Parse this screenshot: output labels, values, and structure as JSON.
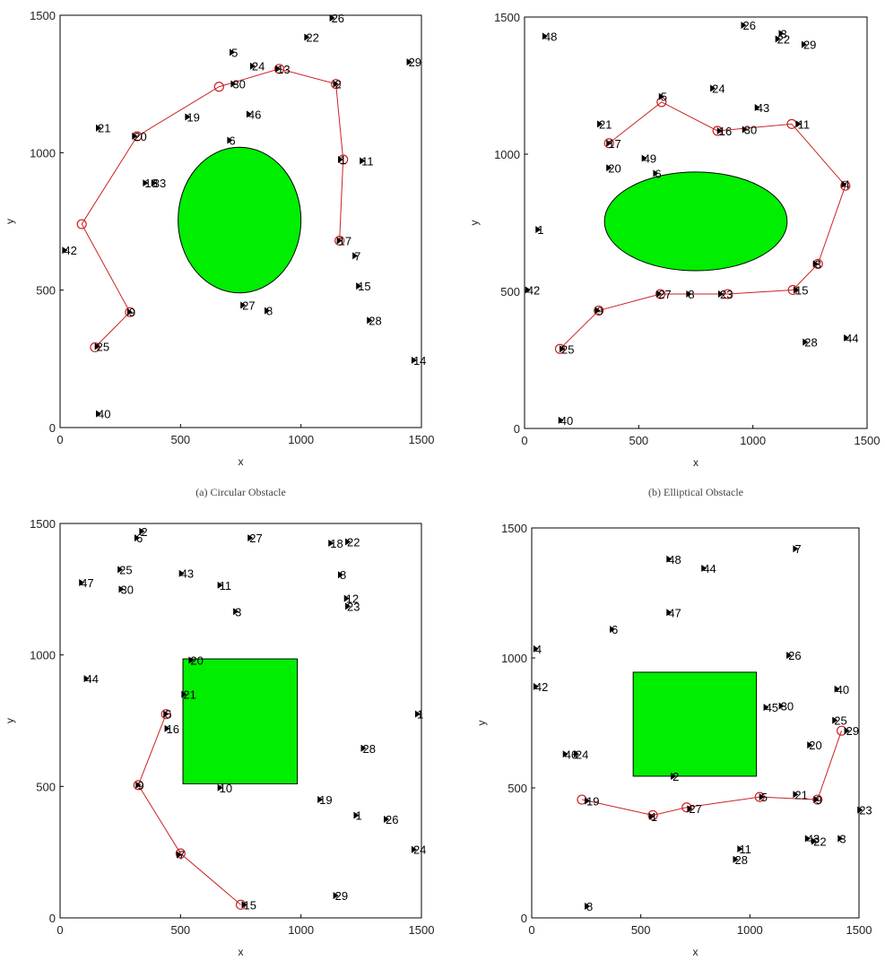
{
  "colors": {
    "obstacle": "#00ee00",
    "path": "#cc2222",
    "frame": "#000000"
  },
  "chart_data": [
    {
      "type": "scatter",
      "caption": "(a) Circular Obstacle",
      "xlabel": "x",
      "ylabel": "y",
      "xlim": [
        0,
        1500
      ],
      "ylim": [
        0,
        1500
      ],
      "xticks": [
        0,
        500,
        1000,
        1500
      ],
      "yticks": [
        0,
        500,
        1000,
        1500
      ],
      "obstacle": {
        "shape": "ellipse",
        "cx": 745,
        "cy": 755,
        "rx": 255,
        "ry": 265
      },
      "points": [
        {
          "label": "26",
          "x": 1130,
          "y": 1490
        },
        {
          "label": "22",
          "x": 1025,
          "y": 1420
        },
        {
          "label": "29",
          "x": 1450,
          "y": 1330
        },
        {
          "label": "5",
          "x": 715,
          "y": 1365
        },
        {
          "label": "24",
          "x": 800,
          "y": 1315
        },
        {
          "label": "13",
          "x": 905,
          "y": 1305
        },
        {
          "label": "2",
          "x": 1145,
          "y": 1250
        },
        {
          "label": "30",
          "x": 720,
          "y": 1250
        },
        {
          "label": "46",
          "x": 785,
          "y": 1140
        },
        {
          "label": "19",
          "x": 530,
          "y": 1130
        },
        {
          "label": "21",
          "x": 160,
          "y": 1090
        },
        {
          "label": "20",
          "x": 310,
          "y": 1060
        },
        {
          "label": "6",
          "x": 705,
          "y": 1045
        },
        {
          "label": "1",
          "x": 1165,
          "y": 975
        },
        {
          "label": "11",
          "x": 1255,
          "y": 970
        },
        {
          "label": "18",
          "x": 355,
          "y": 890
        },
        {
          "label": "33",
          "x": 390,
          "y": 890
        },
        {
          "label": "17",
          "x": 1160,
          "y": 680
        },
        {
          "label": "42",
          "x": 20,
          "y": 645
        },
        {
          "label": "7",
          "x": 1225,
          "y": 625
        },
        {
          "label": "15",
          "x": 1240,
          "y": 515
        },
        {
          "label": "27",
          "x": 760,
          "y": 445
        },
        {
          "label": "8",
          "x": 860,
          "y": 425
        },
        {
          "label": "9",
          "x": 290,
          "y": 420
        },
        {
          "label": "28",
          "x": 1285,
          "y": 390
        },
        {
          "label": "25",
          "x": 155,
          "y": 295
        },
        {
          "label": "14",
          "x": 1470,
          "y": 245
        },
        {
          "label": "40",
          "x": 160,
          "y": 50
        }
      ],
      "path": [
        [
          145,
          292
        ],
        [
          290,
          420
        ],
        [
          90,
          740
        ],
        [
          320,
          1060
        ],
        [
          660,
          1240
        ],
        [
          910,
          1305
        ],
        [
          1145,
          1250
        ],
        [
          1175,
          975
        ],
        [
          1160,
          680
        ]
      ],
      "path_nodes": [
        [
          145,
          292
        ],
        [
          290,
          420
        ],
        [
          90,
          740
        ],
        [
          320,
          1060
        ],
        [
          660,
          1240
        ],
        [
          910,
          1305
        ],
        [
          1145,
          1250
        ],
        [
          1175,
          975
        ],
        [
          1160,
          680
        ]
      ]
    },
    {
      "type": "scatter",
      "caption": "(b) Elliptical Obstacle",
      "xlabel": "x",
      "ylabel": "y",
      "xlim": [
        0,
        1500
      ],
      "ylim": [
        0,
        1500
      ],
      "xticks": [
        0,
        500,
        1000,
        1500
      ],
      "yticks": [
        0,
        500,
        1000,
        1500
      ],
      "obstacle": {
        "shape": "ellipse",
        "cx": 750,
        "cy": 755,
        "rx": 400,
        "ry": 180
      },
      "points": [
        {
          "label": "26",
          "x": 960,
          "y": 1470
        },
        {
          "label": "3",
          "x": 1125,
          "y": 1440
        },
        {
          "label": "48",
          "x": 90,
          "y": 1430
        },
        {
          "label": "22",
          "x": 1110,
          "y": 1420
        },
        {
          "label": "29",
          "x": 1225,
          "y": 1400
        },
        {
          "label": "24",
          "x": 825,
          "y": 1240
        },
        {
          "label": "5",
          "x": 600,
          "y": 1210
        },
        {
          "label": "43",
          "x": 1020,
          "y": 1170
        },
        {
          "label": "11",
          "x": 1200,
          "y": 1110
        },
        {
          "label": "21",
          "x": 330,
          "y": 1110
        },
        {
          "label": "16",
          "x": 855,
          "y": 1085
        },
        {
          "label": "30",
          "x": 965,
          "y": 1090
        },
        {
          "label": "17",
          "x": 370,
          "y": 1040
        },
        {
          "label": "49",
          "x": 525,
          "y": 985
        },
        {
          "label": "20",
          "x": 370,
          "y": 950
        },
        {
          "label": "6",
          "x": 575,
          "y": 930
        },
        {
          "label": "4",
          "x": 1400,
          "y": 890
        },
        {
          "label": "1",
          "x": 60,
          "y": 725
        },
        {
          "label": "3",
          "x": 1275,
          "y": 600
        },
        {
          "label": "42",
          "x": 15,
          "y": 505
        },
        {
          "label": "15",
          "x": 1190,
          "y": 505
        },
        {
          "label": "27",
          "x": 590,
          "y": 490
        },
        {
          "label": "8",
          "x": 720,
          "y": 490
        },
        {
          "label": "23",
          "x": 860,
          "y": 490
        },
        {
          "label": "9",
          "x": 320,
          "y": 430
        },
        {
          "label": "44",
          "x": 1410,
          "y": 330
        },
        {
          "label": "28",
          "x": 1230,
          "y": 315
        },
        {
          "label": "25",
          "x": 165,
          "y": 290
        },
        {
          "label": "40",
          "x": 160,
          "y": 30
        }
      ],
      "path": [
        [
          155,
          290
        ],
        [
          325,
          430
        ],
        [
          595,
          490
        ],
        [
          890,
          490
        ],
        [
          1175,
          505
        ],
        [
          1285,
          600
        ],
        [
          1405,
          885
        ],
        [
          1170,
          1110
        ],
        [
          845,
          1085
        ],
        [
          600,
          1190
        ],
        [
          370,
          1040
        ]
      ],
      "path_nodes": [
        [
          155,
          290
        ],
        [
          325,
          430
        ],
        [
          595,
          490
        ],
        [
          890,
          490
        ],
        [
          1175,
          505
        ],
        [
          1285,
          600
        ],
        [
          1405,
          885
        ],
        [
          1170,
          1110
        ],
        [
          845,
          1085
        ],
        [
          600,
          1190
        ],
        [
          370,
          1040
        ]
      ]
    },
    {
      "type": "scatter",
      "caption": "",
      "xlabel": "x",
      "ylabel": "y",
      "xlim": [
        0,
        1500
      ],
      "ylim": [
        0,
        1500
      ],
      "xticks": [
        0,
        500,
        1000,
        1500
      ],
      "yticks": [
        0,
        500,
        1000,
        1500
      ],
      "obstacle": {
        "shape": "rect",
        "x0": 510,
        "x1": 985,
        "y0": 510,
        "y1": 985
      },
      "points": [
        {
          "label": "2",
          "x": 340,
          "y": 1470
        },
        {
          "label": "6",
          "x": 320,
          "y": 1445
        },
        {
          "label": "27",
          "x": 790,
          "y": 1445
        },
        {
          "label": "18",
          "x": 1125,
          "y": 1425
        },
        {
          "label": "22",
          "x": 1195,
          "y": 1430
        },
        {
          "label": "25",
          "x": 250,
          "y": 1325
        },
        {
          "label": "43",
          "x": 505,
          "y": 1310
        },
        {
          "label": "8",
          "x": 1165,
          "y": 1305
        },
        {
          "label": "47",
          "x": 90,
          "y": 1275
        },
        {
          "label": "11",
          "x": 665,
          "y": 1265
        },
        {
          "label": "30",
          "x": 255,
          "y": 1250
        },
        {
          "label": "12",
          "x": 1190,
          "y": 1215
        },
        {
          "label": "23",
          "x": 1195,
          "y": 1185
        },
        {
          "label": "3",
          "x": 730,
          "y": 1165
        },
        {
          "label": "20",
          "x": 545,
          "y": 980
        },
        {
          "label": "44",
          "x": 110,
          "y": 910
        },
        {
          "label": "21",
          "x": 515,
          "y": 850
        },
        {
          "label": "5",
          "x": 440,
          "y": 775
        },
        {
          "label": "1",
          "x": 1485,
          "y": 775
        },
        {
          "label": "16",
          "x": 445,
          "y": 720
        },
        {
          "label": "28",
          "x": 1260,
          "y": 645
        },
        {
          "label": "9",
          "x": 325,
          "y": 505
        },
        {
          "label": "10",
          "x": 665,
          "y": 495
        },
        {
          "label": "19",
          "x": 1080,
          "y": 450
        },
        {
          "label": "1",
          "x": 1230,
          "y": 390
        },
        {
          "label": "26",
          "x": 1355,
          "y": 375
        },
        {
          "label": "24",
          "x": 1470,
          "y": 260
        },
        {
          "label": "7",
          "x": 495,
          "y": 240
        },
        {
          "label": "29",
          "x": 1145,
          "y": 85
        },
        {
          "label": "15",
          "x": 765,
          "y": 50
        }
      ],
      "path": [
        [
          440,
          775
        ],
        [
          325,
          505
        ],
        [
          500,
          245
        ],
        [
          750,
          50
        ]
      ],
      "path_nodes": [
        [
          440,
          775
        ],
        [
          325,
          505
        ],
        [
          500,
          245
        ],
        [
          750,
          50
        ]
      ]
    },
    {
      "type": "scatter",
      "caption": "",
      "xlabel": "x",
      "ylabel": "y",
      "xlim": [
        0,
        1500
      ],
      "ylim": [
        0,
        1500
      ],
      "xticks": [
        0,
        500,
        1000,
        1500
      ],
      "yticks": [
        0,
        500,
        1000,
        1500
      ],
      "obstacle": {
        "shape": "rect",
        "x0": 465,
        "x1": 1030,
        "y0": 545,
        "y1": 945
      },
      "points": [
        {
          "label": "7",
          "x": 1210,
          "y": 1420
        },
        {
          "label": "48",
          "x": 630,
          "y": 1380
        },
        {
          "label": "44",
          "x": 790,
          "y": 1345
        },
        {
          "label": "47",
          "x": 630,
          "y": 1175
        },
        {
          "label": "6",
          "x": 370,
          "y": 1110
        },
        {
          "label": "4",
          "x": 20,
          "y": 1035
        },
        {
          "label": "26",
          "x": 1180,
          "y": 1010
        },
        {
          "label": "42",
          "x": 20,
          "y": 890
        },
        {
          "label": "40",
          "x": 1400,
          "y": 880
        },
        {
          "label": "45",
          "x": 1075,
          "y": 810
        },
        {
          "label": "30",
          "x": 1145,
          "y": 815
        },
        {
          "label": "25",
          "x": 1390,
          "y": 760
        },
        {
          "label": "29",
          "x": 1445,
          "y": 720
        },
        {
          "label": "20",
          "x": 1275,
          "y": 665
        },
        {
          "label": "46",
          "x": 155,
          "y": 630
        },
        {
          "label": "24",
          "x": 205,
          "y": 630
        },
        {
          "label": "2",
          "x": 650,
          "y": 545
        },
        {
          "label": "21",
          "x": 1210,
          "y": 475
        },
        {
          "label": "5",
          "x": 1055,
          "y": 465
        },
        {
          "label": "9",
          "x": 1305,
          "y": 455
        },
        {
          "label": "19",
          "x": 255,
          "y": 450
        },
        {
          "label": "27",
          "x": 725,
          "y": 420
        },
        {
          "label": "23",
          "x": 1505,
          "y": 415
        },
        {
          "label": "1",
          "x": 550,
          "y": 390
        },
        {
          "label": "43",
          "x": 1265,
          "y": 305
        },
        {
          "label": "22",
          "x": 1295,
          "y": 295
        },
        {
          "label": "3",
          "x": 1415,
          "y": 305
        },
        {
          "label": "11",
          "x": 955,
          "y": 265
        },
        {
          "label": "28",
          "x": 935,
          "y": 225
        },
        {
          "label": "8",
          "x": 255,
          "y": 45
        }
      ],
      "path": [
        [
          230,
          455
        ],
        [
          555,
          395
        ],
        [
          710,
          425
        ],
        [
          1045,
          465
        ],
        [
          1310,
          455
        ],
        [
          1420,
          720
        ]
      ],
      "path_nodes": [
        [
          230,
          455
        ],
        [
          555,
          395
        ],
        [
          710,
          425
        ],
        [
          1045,
          465
        ],
        [
          1310,
          455
        ],
        [
          1420,
          720
        ]
      ]
    }
  ]
}
